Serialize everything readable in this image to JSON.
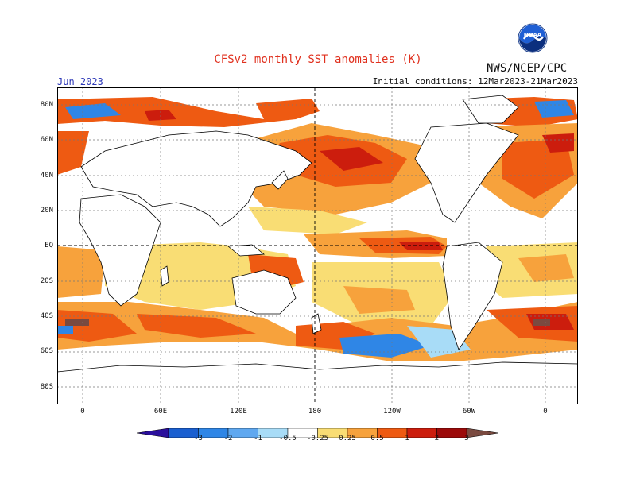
{
  "header": {
    "title": "CFSv2 monthly SST anomalies (K)",
    "agency": "NWS/NCEP/CPC",
    "valid_month": "Jun 2023",
    "initial_conditions": "Initial conditions: 12Mar2023-21Mar2023"
  },
  "logo": {
    "icon": "noaa-logo-icon",
    "text": "NOAA"
  },
  "map": {
    "projection": "cylindrical equidistant",
    "lat_labels": [
      "80N",
      "60N",
      "40N",
      "20N",
      "EQ",
      "20S",
      "40S",
      "60S",
      "80S"
    ],
    "lon_labels": [
      "0",
      "60E",
      "120E",
      "180",
      "120W",
      "60W",
      "0"
    ],
    "gridlines": "dotted",
    "reference_lines": [
      "EQ",
      "180"
    ]
  },
  "colorbar": {
    "labels": [
      "-3",
      "-2",
      "-1",
      "-0.5",
      "-0.25",
      "0.25",
      "0.5",
      "1",
      "2",
      "3"
    ],
    "colors": [
      "#2a0f9c",
      "#1a5fd0",
      "#2f86e6",
      "#5fa8f0",
      "#a8dcf7",
      "#ffffff",
      "#f9dd74",
      "#f7a23c",
      "#ee5a12",
      "#cc1d0d",
      "#9c0a0a",
      "#7a4a40"
    ]
  }
}
